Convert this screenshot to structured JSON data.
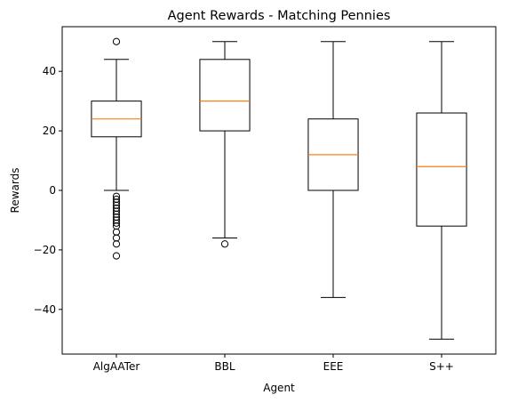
{
  "chart_data": {
    "type": "boxplot",
    "title": "Agent Rewards - Matching Pennies",
    "xlabel": "Agent",
    "ylabel": "Rewards",
    "ylim": [
      -55,
      55
    ],
    "yticks": [
      -40,
      -20,
      0,
      20,
      40
    ],
    "ytick_labels": [
      "−40",
      "−20",
      "0",
      "20",
      "40"
    ],
    "grid": false,
    "legend": "none",
    "colors": {
      "box": "#000000",
      "median": "#ff7f0e",
      "background": "#ffffff"
    },
    "categories": [
      "AlgAATer",
      "BBL",
      "EEE",
      "S++"
    ],
    "boxes": [
      {
        "label": "AlgAATer",
        "whisker_low": 0,
        "q1": 18,
        "median": 24,
        "q3": 30,
        "whisker_high": 44,
        "outliers": [
          50,
          -2,
          -3,
          -4,
          -5,
          -6,
          -7,
          -8,
          -9,
          -10,
          -11,
          -12,
          -14,
          -16,
          -18,
          -22
        ]
      },
      {
        "label": "BBL",
        "whisker_low": -16,
        "q1": 20,
        "median": 30,
        "q3": 44,
        "whisker_high": 50,
        "outliers": [
          -18
        ]
      },
      {
        "label": "EEE",
        "whisker_low": -36,
        "q1": 0,
        "median": 12,
        "q3": 24,
        "whisker_high": 50,
        "outliers": []
      },
      {
        "label": "S++",
        "whisker_low": -50,
        "q1": -12,
        "median": 8,
        "q3": 26,
        "whisker_high": 50,
        "outliers": []
      }
    ]
  }
}
